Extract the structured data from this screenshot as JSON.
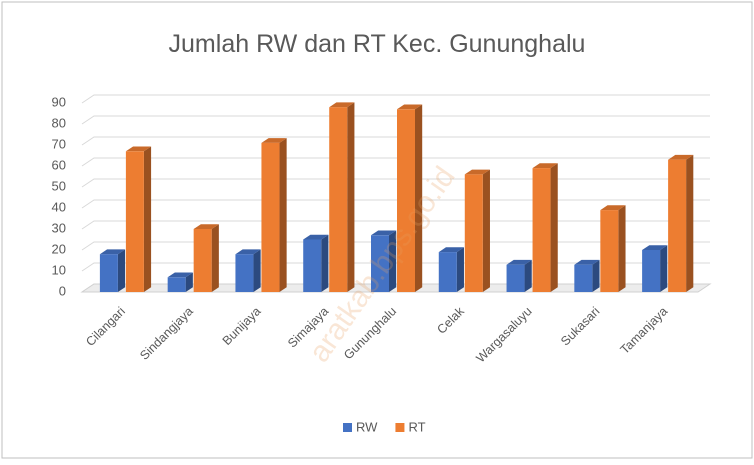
{
  "chart_data": {
    "type": "bar",
    "title": "Jumlah  RW dan RT Kec. Gununghalu",
    "categories": [
      "Cilangari",
      "Sindangjaya",
      "Bunijaya",
      "Simajaya",
      "Gununghalu",
      "Celak",
      "Wargasaluyu",
      "Sukasari",
      "Tamanjaya"
    ],
    "series": [
      {
        "name": "RW",
        "color": "#4472c4",
        "values": [
          18,
          7,
          18,
          25,
          27,
          19,
          13,
          13,
          20
        ]
      },
      {
        "name": "RT",
        "color": "#ed7d31",
        "values": [
          67,
          30,
          71,
          88,
          87,
          56,
          59,
          39,
          63
        ]
      }
    ],
    "ylim": [
      0,
      90
    ],
    "yticks": [
      0,
      10,
      20,
      30,
      40,
      50,
      60,
      70,
      80,
      90
    ],
    "grid": true,
    "legend": "bottom",
    "watermark": "aratkab.bps.go.id"
  }
}
